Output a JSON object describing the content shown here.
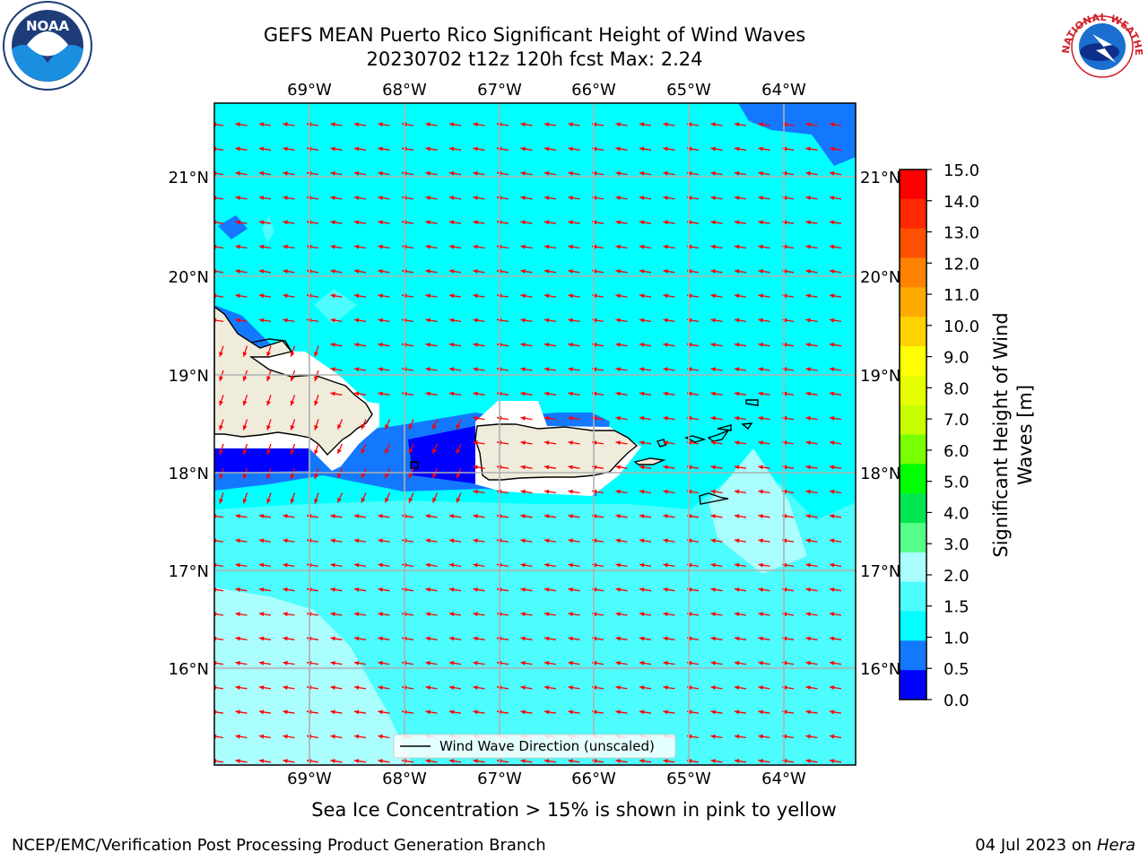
{
  "title": {
    "line1": "GEFS MEAN Puerto Rico Significant Height of Wind Waves",
    "line2": "20230702 t12z 120h fcst   Max: 2.24"
  },
  "map": {
    "lon_ticks": [
      "69°W",
      "68°W",
      "67°W",
      "66°W",
      "65°W",
      "64°W"
    ],
    "lat_ticks": [
      "21°N",
      "20°N",
      "19°N",
      "18°N",
      "17°N",
      "16°N"
    ],
    "legend_label": "Wind Wave Direction (unscaled)",
    "colors": {
      "level_0_0_5": "#0000ff",
      "level_0_5_1_0": "#1478ff",
      "level_1_0_1_5": "#00ffff",
      "level_1_5_2_0": "#4dfcfc",
      "level_2_0_3_0": "#aafefe",
      "land": "#efecdc",
      "arrows": "#ff0000"
    }
  },
  "colorbar": {
    "label_line1": "Significant Height of Wind",
    "label_line2": "Waves [m]",
    "levels": [
      "15.0",
      "14.0",
      "13.0",
      "12.0",
      "11.0",
      "10.0",
      "9.0",
      "8.0",
      "7.0",
      "6.0",
      "5.0",
      "4.0",
      "3.0",
      "2.0",
      "1.5",
      "1.0",
      "0.5",
      "0.0"
    ],
    "colors": [
      "#ff0000",
      "#ff2800",
      "#ff5000",
      "#ff8200",
      "#ffaa00",
      "#ffd200",
      "#ffff00",
      "#e6ff00",
      "#c8ff00",
      "#78ff00",
      "#00ff00",
      "#00e650",
      "#55ff88",
      "#aafefe",
      "#4dfcfc",
      "#00ffff",
      "#1478ff",
      "#0000ff"
    ]
  },
  "note": "Sea Ice Concentration > 15% is shown in pink to yellow",
  "footer": {
    "left": "NCEP/EMC/Verification Post Processing Product Generation Branch",
    "right_prefix": "04 Jul 2023 on ",
    "right_host": "Hera"
  },
  "logos": {
    "noaa_text": "NOAA",
    "nws_text": "NATIONAL WEATHER SERVICE"
  }
}
